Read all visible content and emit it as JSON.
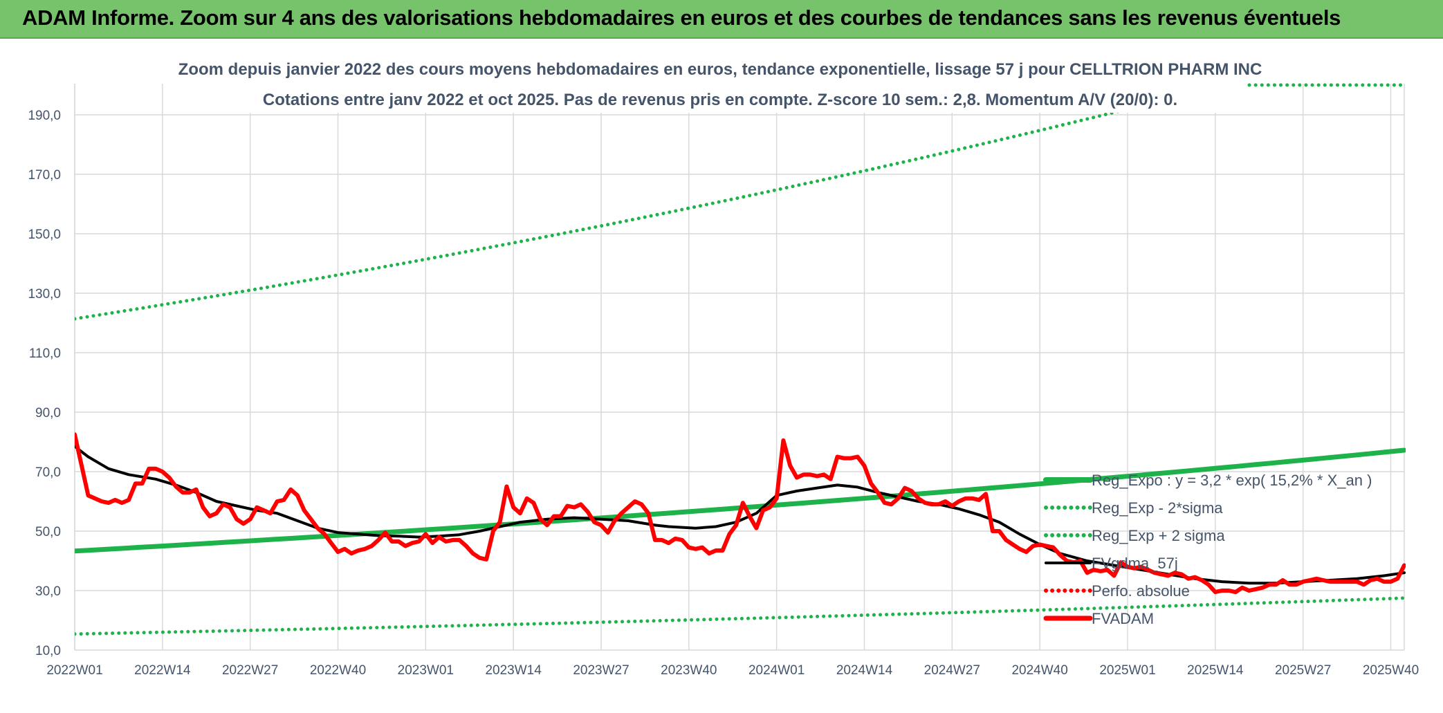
{
  "banner": {
    "title": "ADAM Informe. Zoom sur 4 ans des valorisations hebdomadaires en euros et des courbes de tendances sans les revenus éventuels"
  },
  "colors": {
    "banner_bg": "#77c36c",
    "trend_green": "#1db34a",
    "price_red": "#ff0000",
    "smooth_black": "#000000",
    "grid": "#d9d9d9",
    "title_text": "#44546a"
  },
  "chart_data": {
    "type": "line",
    "title": "Zoom depuis janvier 2022 des cours moyens hebdomadaires en euros, tendance exponentielle, lissage 57 j pour CELLTRION PHARM INC",
    "subtitle": "Cotations entre janv 2022 et oct 2025. Pas de revenus pris en compte. Z-score 10 sem.: 2,8. Momentum A/V (20/0): 0.",
    "xlabel": "",
    "ylabel": "",
    "ylim": [
      10,
      200
    ],
    "yticks": [
      "10,0",
      "30,0",
      "50,0",
      "70,0",
      "90,0",
      "110,0",
      "130,0",
      "150,0",
      "170,0",
      "190,0"
    ],
    "x_range_weeks": [
      0,
      197
    ],
    "xticks": [
      {
        "label": "2022W01",
        "week": 0
      },
      {
        "label": "2022W14",
        "week": 13
      },
      {
        "label": "2022W27",
        "week": 26
      },
      {
        "label": "2022W40",
        "week": 39
      },
      {
        "label": "2023W01",
        "week": 52
      },
      {
        "label": "2023W14",
        "week": 65
      },
      {
        "label": "2023W27",
        "week": 78
      },
      {
        "label": "2023W40",
        "week": 91
      },
      {
        "label": "2024W01",
        "week": 104
      },
      {
        "label": "2024W14",
        "week": 117
      },
      {
        "label": "2024W27",
        "week": 130
      },
      {
        "label": "2024W40",
        "week": 143
      },
      {
        "label": "2025W01",
        "week": 156
      },
      {
        "label": "2025W14",
        "week": 169
      },
      {
        "label": "2025W27",
        "week": 182
      },
      {
        "label": "2025W40",
        "week": 195
      }
    ],
    "grid": true,
    "legend_position": "bottom-right",
    "series": [
      {
        "name": "Reg_Expo : y = 3,2 * exp( 15,2% *  X_an )",
        "style": "solid-thick",
        "color": "#1db34a",
        "points": [
          [
            0,
            43.3
          ],
          [
            197,
            77.2
          ]
        ]
      },
      {
        "name": "Reg_Exp - 2*sigma",
        "style": "dotted",
        "color": "#1db34a",
        "points": [
          [
            0,
            15.4
          ],
          [
            197,
            27.5
          ]
        ]
      },
      {
        "name": "Reg_Exp + 2 sigma",
        "style": "dotted",
        "color": "#1db34a",
        "points": [
          [
            0,
            121.4
          ],
          [
            197,
            216.5
          ]
        ]
      },
      {
        "name": "FVgdma_57j",
        "style": "solid",
        "color": "#000000",
        "points": [
          [
            0,
            78.5
          ],
          [
            2,
            75
          ],
          [
            5,
            71
          ],
          [
            8,
            69
          ],
          [
            12,
            67.5
          ],
          [
            15,
            65.5
          ],
          [
            18,
            63
          ],
          [
            21,
            60
          ],
          [
            24,
            58.5
          ],
          [
            27,
            57
          ],
          [
            30,
            56
          ],
          [
            33,
            53.5
          ],
          [
            36,
            51
          ],
          [
            39,
            49.5
          ],
          [
            42,
            49
          ],
          [
            45,
            48.5
          ],
          [
            48,
            48.3
          ],
          [
            51,
            48
          ],
          [
            54,
            48.3
          ],
          [
            57,
            48.8
          ],
          [
            60,
            50
          ],
          [
            62,
            51
          ],
          [
            64,
            52
          ],
          [
            66,
            53
          ],
          [
            70,
            54
          ],
          [
            74,
            54.5
          ],
          [
            78,
            54
          ],
          [
            82,
            53.5
          ],
          [
            86,
            52
          ],
          [
            88,
            51.5
          ],
          [
            92,
            51
          ],
          [
            95,
            51.5
          ],
          [
            98,
            53
          ],
          [
            101,
            56
          ],
          [
            104,
            62
          ],
          [
            107,
            63.5
          ],
          [
            110,
            64.5
          ],
          [
            113,
            65.5
          ],
          [
            116,
            64.8
          ],
          [
            119,
            63
          ],
          [
            122,
            61.5
          ],
          [
            125,
            60
          ],
          [
            128,
            59
          ],
          [
            131,
            57.5
          ],
          [
            134,
            55.5
          ],
          [
            137,
            53
          ],
          [
            140,
            49
          ],
          [
            143,
            45.5
          ],
          [
            146,
            42.5
          ],
          [
            150,
            40
          ],
          [
            154,
            38.5
          ],
          [
            158,
            37
          ],
          [
            162,
            35.5
          ],
          [
            166,
            34
          ],
          [
            170,
            33
          ],
          [
            174,
            32.5
          ],
          [
            178,
            32.5
          ],
          [
            182,
            33
          ],
          [
            186,
            33.5
          ],
          [
            190,
            34
          ],
          [
            194,
            35
          ],
          [
            197,
            36
          ]
        ]
      },
      {
        "name": "Perfo. absolue",
        "style": "dotted",
        "color": "#ff0000",
        "points": []
      },
      {
        "name": "FVADAM",
        "style": "solid-thick",
        "color": "#ff0000",
        "points": [
          [
            0,
            82.5
          ],
          [
            2,
            62
          ],
          [
            4,
            60
          ],
          [
            5,
            59.5
          ],
          [
            6,
            60.5
          ],
          [
            7,
            59.5
          ],
          [
            8,
            60.5
          ],
          [
            9,
            66
          ],
          [
            10,
            66
          ],
          [
            11,
            71
          ],
          [
            12,
            71
          ],
          [
            13,
            70
          ],
          [
            14,
            68
          ],
          [
            15,
            65
          ],
          [
            16,
            63
          ],
          [
            17,
            63
          ],
          [
            18,
            64
          ],
          [
            19,
            58
          ],
          [
            20,
            55
          ],
          [
            21,
            56
          ],
          [
            22,
            59
          ],
          [
            23,
            58
          ],
          [
            24,
            54
          ],
          [
            25,
            52.5
          ],
          [
            26,
            54
          ],
          [
            27,
            58
          ],
          [
            28,
            57
          ],
          [
            29,
            56
          ],
          [
            30,
            60
          ],
          [
            31,
            60.5
          ],
          [
            32,
            64
          ],
          [
            33,
            62
          ],
          [
            34,
            57
          ],
          [
            35,
            54
          ],
          [
            36,
            51
          ],
          [
            37,
            49
          ],
          [
            38,
            46
          ],
          [
            39,
            43
          ],
          [
            40,
            44
          ],
          [
            41,
            42.5
          ],
          [
            42,
            43.5
          ],
          [
            43,
            44
          ],
          [
            44,
            45
          ],
          [
            45,
            47
          ],
          [
            46,
            49.5
          ],
          [
            47,
            46.5
          ],
          [
            48,
            46.5
          ],
          [
            49,
            45
          ],
          [
            50,
            46
          ],
          [
            51,
            46.5
          ],
          [
            52,
            49
          ],
          [
            53,
            46
          ],
          [
            54,
            48
          ],
          [
            55,
            46.5
          ],
          [
            56,
            47
          ],
          [
            57,
            47
          ],
          [
            58,
            45
          ],
          [
            59,
            42.5
          ],
          [
            60,
            41
          ],
          [
            61,
            40.5
          ],
          [
            62,
            50
          ],
          [
            63,
            53
          ],
          [
            64,
            65
          ],
          [
            65,
            58
          ],
          [
            66,
            56
          ],
          [
            67,
            61
          ],
          [
            68,
            59.5
          ],
          [
            69,
            54
          ],
          [
            70,
            52
          ],
          [
            71,
            55
          ],
          [
            72,
            55
          ],
          [
            73,
            58.5
          ],
          [
            74,
            58
          ],
          [
            75,
            59
          ],
          [
            76,
            56.5
          ],
          [
            77,
            53
          ],
          [
            78,
            52
          ],
          [
            79,
            49.5
          ],
          [
            80,
            53.5
          ],
          [
            81,
            56
          ],
          [
            82,
            58
          ],
          [
            83,
            60
          ],
          [
            84,
            59
          ],
          [
            85,
            56
          ],
          [
            86,
            47
          ],
          [
            87,
            47
          ],
          [
            88,
            46
          ],
          [
            89,
            47.5
          ],
          [
            90,
            47
          ],
          [
            91,
            44.5
          ],
          [
            92,
            44
          ],
          [
            93,
            44.5
          ],
          [
            94,
            42.5
          ],
          [
            95,
            43.5
          ],
          [
            96,
            43.5
          ],
          [
            97,
            49
          ],
          [
            98,
            52
          ],
          [
            99,
            59.5
          ],
          [
            100,
            55
          ],
          [
            101,
            51
          ],
          [
            102,
            57
          ],
          [
            103,
            58
          ],
          [
            104,
            61
          ],
          [
            105,
            80.5
          ],
          [
            106,
            72
          ],
          [
            107,
            68
          ],
          [
            108,
            69
          ],
          [
            109,
            69
          ],
          [
            110,
            68.5
          ],
          [
            111,
            69
          ],
          [
            112,
            67.5
          ],
          [
            113,
            75
          ],
          [
            114,
            74.5
          ],
          [
            115,
            74.5
          ],
          [
            116,
            75
          ],
          [
            117,
            72
          ],
          [
            118,
            66
          ],
          [
            119,
            63
          ],
          [
            120,
            59.5
          ],
          [
            121,
            59
          ],
          [
            122,
            61
          ],
          [
            123,
            64.5
          ],
          [
            124,
            63.5
          ],
          [
            125,
            61
          ],
          [
            126,
            59.5
          ],
          [
            127,
            59
          ],
          [
            128,
            59
          ],
          [
            129,
            60
          ],
          [
            130,
            58.5
          ],
          [
            131,
            60
          ],
          [
            132,
            61
          ],
          [
            133,
            61
          ],
          [
            134,
            60.5
          ],
          [
            135,
            62.5
          ],
          [
            136,
            50
          ],
          [
            137,
            50
          ],
          [
            138,
            47
          ],
          [
            139,
            45.5
          ],
          [
            140,
            44
          ],
          [
            141,
            43
          ],
          [
            142,
            45
          ],
          [
            143,
            45.5
          ],
          [
            144,
            45
          ],
          [
            145,
            44.5
          ],
          [
            146,
            42
          ],
          [
            147,
            40
          ],
          [
            148,
            39.5
          ],
          [
            149,
            40
          ],
          [
            150,
            36
          ],
          [
            151,
            37
          ],
          [
            152,
            36.5
          ],
          [
            153,
            37
          ],
          [
            154,
            35
          ],
          [
            155,
            39.5
          ],
          [
            156,
            38
          ],
          [
            157,
            37.5
          ],
          [
            158,
            38
          ],
          [
            159,
            37
          ],
          [
            160,
            36
          ],
          [
            161,
            35.5
          ],
          [
            162,
            35
          ],
          [
            163,
            36
          ],
          [
            164,
            35.5
          ],
          [
            165,
            34
          ],
          [
            166,
            34.5
          ],
          [
            167,
            33.5
          ],
          [
            168,
            32
          ],
          [
            169,
            29.5
          ],
          [
            170,
            30
          ],
          [
            171,
            30
          ],
          [
            172,
            29.5
          ],
          [
            173,
            31
          ],
          [
            174,
            30
          ],
          [
            175,
            30.5
          ],
          [
            176,
            31
          ],
          [
            177,
            32
          ],
          [
            178,
            32
          ],
          [
            179,
            33.5
          ],
          [
            180,
            32
          ],
          [
            181,
            32
          ],
          [
            182,
            33
          ],
          [
            183,
            33.5
          ],
          [
            184,
            34
          ],
          [
            185,
            33.5
          ],
          [
            186,
            33
          ],
          [
            187,
            33
          ],
          [
            188,
            33
          ],
          [
            189,
            33
          ],
          [
            190,
            33
          ],
          [
            191,
            32
          ],
          [
            192,
            33.5
          ],
          [
            193,
            34
          ],
          [
            194,
            33
          ],
          [
            195,
            33
          ],
          [
            196,
            34
          ],
          [
            197,
            38.5
          ]
        ]
      }
    ]
  }
}
